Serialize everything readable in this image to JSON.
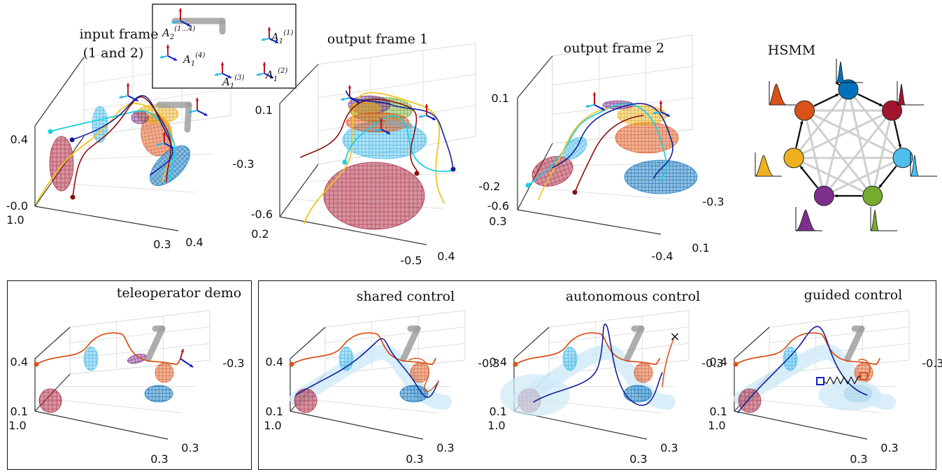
{
  "panels": [
    {
      "id": "input",
      "title_lines": [
        "input frame",
        "(1 and 2)"
      ],
      "ticks": {
        "z_top": "0.4",
        "z_bottom": "-0.0",
        "x_left": "1.0",
        "x_right": "0.3",
        "y_right": "0.4"
      },
      "inset_labels": [
        "A_2^(1...4)",
        "A_1^(1)",
        "A_1^(4)",
        "A_1^(3)",
        "A_1^(2)"
      ]
    },
    {
      "id": "output1",
      "title_lines": [
        "output frame 1"
      ],
      "ticks": {
        "z_top": "0.1",
        "z_bottom": "-0.6",
        "x_left": "0.2",
        "x_right": "-0.5",
        "y_top": "-0.3",
        "y_bottom": "-0.2",
        "y_right": "0.4"
      }
    },
    {
      "id": "output2",
      "title_lines": [
        "output frame 2"
      ],
      "ticks": {
        "z_top": "0.1",
        "z_bottom": "-0.6",
        "x_left": "0.3",
        "x_right": "-0.4",
        "y_top": "-0.3",
        "y_right": "0.1"
      }
    },
    {
      "id": "teleop",
      "title_lines": [
        "teleoperator demo"
      ],
      "ticks": {
        "z_top": "0.4",
        "z_bottom": "0.1",
        "x_left": "1.0",
        "x_right": "0.3",
        "y_top": "-0.3",
        "y_right": "0.3"
      }
    },
    {
      "id": "shared",
      "title_lines": [
        "shared control"
      ],
      "ticks": {
        "z_top": "0.4",
        "z_bottom": "0.1",
        "x_left": "1.0",
        "x_right": "0.3",
        "y_top": "-0.3",
        "y_right": "0.3"
      }
    },
    {
      "id": "autonomous",
      "title_lines": [
        "autonomous control"
      ],
      "ticks": {
        "z_top": "0.4",
        "z_bottom": "0.1",
        "x_left": "1.0",
        "x_right": "0.3",
        "y_top": "-0.3",
        "y_right": "0.3"
      }
    },
    {
      "id": "guided",
      "title_lines": [
        "guided control"
      ],
      "ticks": {
        "z_top": "0.4",
        "z_bottom": "0.1",
        "x_left": "1.0",
        "x_right": "0.3",
        "y_top": "-0.3",
        "y_right": "0.3"
      }
    }
  ],
  "hsmm": {
    "title": "HSMM",
    "states": [
      {
        "color": "#0072BD"
      },
      {
        "color": "#A2142F"
      },
      {
        "color": "#4DBEEE"
      },
      {
        "color": "#77AC30"
      },
      {
        "color": "#7E2F8E"
      },
      {
        "color": "#EDB120"
      },
      {
        "color": "#D95319"
      }
    ]
  },
  "colors": {
    "state_blue": "#0072BD",
    "state_orange": "#D95319",
    "state_yellow": "#EDB120",
    "state_purple": "#7E2F8E",
    "state_green": "#77AC30",
    "state_cyan": "#4DBEEE",
    "state_red": "#A2142F",
    "traj_cyan": "#1ad1e0",
    "traj_navy": "#10209a",
    "traj_darkred": "#8b0f0f",
    "traj_orange": "#d9531e",
    "grid": "#d8d8d8",
    "obstacle": "#a0a0a0"
  },
  "chart_data": [
    {
      "type": "scatter",
      "title": "input frame (1 and 2)",
      "zticks": [
        "-0.0",
        "0.4"
      ],
      "xticks": [
        "1.0",
        "0.3"
      ],
      "yticks": [
        "0.4"
      ]
    },
    {
      "type": "scatter",
      "title": "output frame 1",
      "zticks": [
        "-0.6",
        "0.1"
      ],
      "xticks": [
        "0.2",
        "-0.5"
      ],
      "yticks": [
        "-0.3",
        "-0.2",
        "0.4"
      ]
    },
    {
      "type": "scatter",
      "title": "output frame 2",
      "zticks": [
        "-0.6",
        "0.1"
      ],
      "xticks": [
        "0.3",
        "-0.4"
      ],
      "yticks": [
        "-0.3",
        "0.1"
      ]
    },
    {
      "type": "scatter",
      "title": "teleoperator demo",
      "zticks": [
        "0.1",
        "0.4"
      ],
      "xticks": [
        "1.0",
        "0.3"
      ],
      "yticks": [
        "-0.3",
        "0.3"
      ]
    },
    {
      "type": "scatter",
      "title": "shared control",
      "zticks": [
        "0.1",
        "0.4"
      ],
      "xticks": [
        "1.0",
        "0.3"
      ],
      "yticks": [
        "-0.3",
        "0.3"
      ]
    },
    {
      "type": "scatter",
      "title": "autonomous control",
      "zticks": [
        "0.1",
        "0.4"
      ],
      "xticks": [
        "1.0",
        "0.3"
      ],
      "yticks": [
        "-0.3",
        "0.3"
      ]
    },
    {
      "type": "scatter",
      "title": "guided control",
      "zticks": [
        "0.1",
        "0.4"
      ],
      "xticks": [
        "1.0",
        "0.3"
      ],
      "yticks": [
        "-0.3",
        "0.3"
      ]
    }
  ]
}
